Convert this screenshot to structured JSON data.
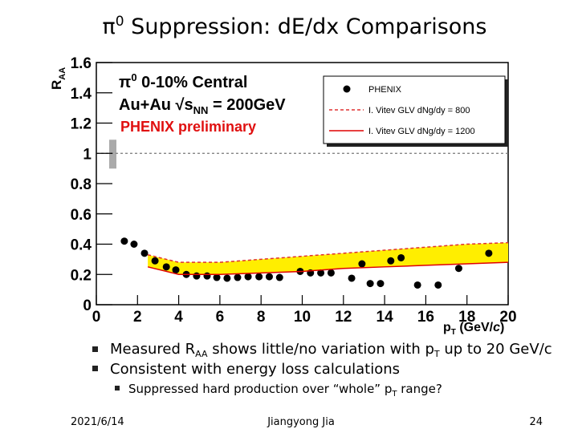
{
  "title": [
    "π",
    "0",
    " Suppression: dE/dx Comparisons"
  ],
  "chart_data": {
    "type": "scatter",
    "y_label": [
      "R",
      "AA"
    ],
    "x_label": [
      "p",
      "T",
      " (GeV/",
      "c",
      ")"
    ],
    "annotations": [
      [
        "π",
        "0",
        " 0-10% Central"
      ],
      [
        "Au+Au √s",
        "NN",
        " = 200GeV"
      ],
      [
        "PHENIX preliminary"
      ]
    ],
    "xlim": [
      0,
      20
    ],
    "ylim": [
      0,
      1.6
    ],
    "xticks": [
      0,
      2,
      4,
      6,
      8,
      10,
      12,
      14,
      16,
      18,
      20
    ],
    "yticks": [
      0,
      0.2,
      0.4,
      0.6,
      0.8,
      1,
      1.2,
      1.4,
      1.6
    ],
    "reference_y": 1,
    "grid": false,
    "legend": "upper right",
    "series": [
      {
        "name": "PHENIX",
        "color": "#000000",
        "style": "points",
        "x": [
          1.36,
          1.83,
          2.34,
          2.85,
          3.4,
          3.86,
          4.37,
          4.87,
          5.38,
          5.85,
          6.35,
          6.86,
          7.37,
          7.9,
          8.4,
          8.9,
          9.9,
          10.4,
          10.9,
          11.4,
          12.4,
          12.9,
          13.3,
          13.8,
          14.3,
          14.8,
          15.6,
          16.6,
          17.6,
          19.06
        ],
        "values": [
          0.42,
          0.4,
          0.34,
          0.29,
          0.25,
          0.23,
          0.2,
          0.19,
          0.19,
          0.18,
          0.175,
          0.18,
          0.185,
          0.185,
          0.185,
          0.18,
          0.22,
          0.21,
          0.21,
          0.21,
          0.175,
          0.27,
          0.14,
          0.14,
          0.29,
          0.31,
          0.13,
          0.13,
          0.24,
          0.34
        ]
      },
      {
        "name": "I. Vitev GLV dNg/dy = 800",
        "color": "#e03030",
        "style": "dashed",
        "x": [
          2.5,
          4,
          6,
          8,
          10,
          12,
          14,
          16,
          18,
          20
        ],
        "values": [
          0.33,
          0.28,
          0.28,
          0.3,
          0.32,
          0.34,
          0.36,
          0.38,
          0.4,
          0.41
        ]
      },
      {
        "name": "I. Vitev GLV dNg/dy = 1200",
        "color": "#e00000",
        "style": "solid",
        "x": [
          2.5,
          4,
          6,
          8,
          10,
          12,
          14,
          16,
          18,
          20
        ],
        "values": [
          0.25,
          0.2,
          0.2,
          0.21,
          0.22,
          0.24,
          0.25,
          0.26,
          0.27,
          0.28
        ]
      }
    ]
  },
  "bullets": [
    [
      "Measured R",
      "AA",
      " shows little/no variation with p",
      "T",
      " up to 20 GeV/c"
    ],
    [
      "Consistent with energy loss calculations"
    ]
  ],
  "sub_bullets": [
    [
      "Suppressed hard production over “whole” p",
      "T",
      " range?"
    ]
  ],
  "footer": {
    "date": "2021/6/14",
    "author": "Jiangyong Jia",
    "page": "24"
  }
}
